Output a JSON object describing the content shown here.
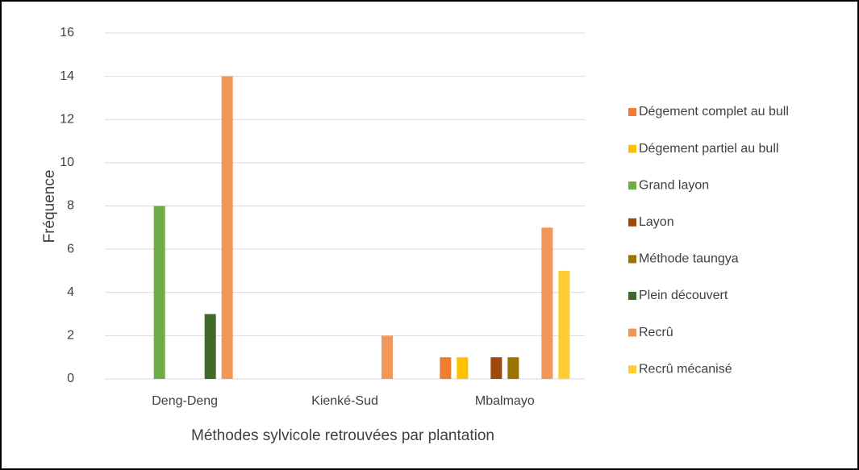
{
  "chart_data": {
    "type": "bar",
    "x_label": "Méthodes sylvicole retrouvées par plantation",
    "y_label": "Fréquence",
    "categories": [
      "Deng-Deng",
      "Kienké-Sud",
      "Mbalmayo"
    ],
    "series": [
      {
        "name": "Dégement complet au bull",
        "color": "#ed7d31",
        "values": [
          0,
          0,
          1
        ]
      },
      {
        "name": "Dégement partiel au bull",
        "color": "#ffc000",
        "values": [
          0,
          0,
          1
        ]
      },
      {
        "name": "Grand layon",
        "color": "#70ad47",
        "values": [
          8,
          0,
          0
        ]
      },
      {
        "name": "Layon",
        "color": "#9e480e",
        "values": [
          0,
          0,
          1
        ]
      },
      {
        "name": "Méthode taungya",
        "color": "#997300",
        "values": [
          0,
          0,
          1
        ]
      },
      {
        "name": "Plein découvert",
        "color": "#43682b",
        "values": [
          3,
          0,
          0
        ]
      },
      {
        "name": "Recrû",
        "color": "#f1975a",
        "values": [
          14,
          2,
          7
        ]
      },
      {
        "name": "Recrû mécanisé",
        "color": "#ffcd33",
        "values": [
          0,
          0,
          5
        ]
      }
    ],
    "ylim": [
      0,
      16
    ],
    "yticks": [
      0,
      2,
      4,
      6,
      8,
      10,
      12,
      14,
      16
    ],
    "grid": true,
    "legend": "right"
  }
}
